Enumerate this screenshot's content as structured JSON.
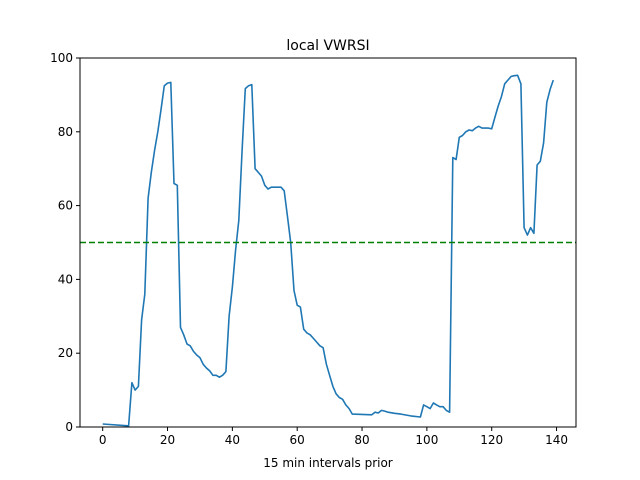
{
  "chart_data": {
    "type": "line",
    "title": "local VWRSI",
    "xlabel": "15 min intervals prior",
    "ylabel": "",
    "xlim": [
      -7,
      146
    ],
    "ylim": [
      0,
      100
    ],
    "xticks": [
      0,
      20,
      40,
      60,
      80,
      100,
      120,
      140
    ],
    "yticks": [
      0,
      20,
      40,
      60,
      80,
      100
    ],
    "grid": false,
    "colors": {
      "series": "#1f77b4",
      "threshold": "#008000"
    },
    "threshold": {
      "y": 50,
      "style": "dashed"
    },
    "series": [
      {
        "name": "local VWRSI",
        "x": [
          0,
          8,
          9,
          10,
          11,
          12,
          13,
          14,
          15,
          16,
          17,
          18,
          19,
          20,
          21,
          22,
          23,
          24,
          25,
          26,
          27,
          28,
          29,
          30,
          31,
          32,
          33,
          34,
          35,
          36,
          37,
          38,
          39,
          40,
          41,
          42,
          43,
          44,
          45,
          46,
          47,
          48,
          49,
          50,
          51,
          52,
          53,
          54,
          55,
          56,
          57,
          58,
          59,
          60,
          61,
          62,
          63,
          64,
          65,
          66,
          67,
          68,
          69,
          70,
          71,
          72,
          73,
          74,
          75,
          76,
          77,
          83,
          84,
          85,
          86,
          87,
          88,
          90,
          92,
          95,
          98,
          99,
          100,
          101,
          102,
          103,
          104,
          105,
          106,
          107,
          108,
          109,
          110,
          111,
          112,
          113,
          114,
          115,
          116,
          117,
          118,
          119,
          120,
          121,
          122,
          123,
          124,
          125,
          126,
          127,
          128,
          129,
          130,
          131,
          132,
          133,
          134,
          135,
          136,
          137,
          138,
          139
        ],
        "y": [
          0.8,
          0.3,
          12,
          10,
          11,
          29,
          36,
          62,
          69,
          75,
          80,
          86,
          92.5,
          93.2,
          93.4,
          66,
          65.5,
          27,
          25,
          22.5,
          22,
          20.5,
          19.5,
          18.8,
          17,
          16,
          15.2,
          14,
          14,
          13.5,
          14,
          15,
          30,
          38,
          48,
          56,
          75,
          91.7,
          92.5,
          92.8,
          70,
          69,
          68,
          65.5,
          64.5,
          65,
          65,
          65,
          65,
          64,
          57,
          50,
          37,
          33,
          32.5,
          26.5,
          25.5,
          25,
          24,
          23,
          22,
          21.5,
          17,
          14,
          11,
          9,
          8,
          7.5,
          6,
          5,
          3.5,
          3.3,
          4,
          3.8,
          4.5,
          4.3,
          4,
          3.7,
          3.5,
          3,
          2.7,
          6,
          5.5,
          5,
          6.5,
          6,
          5.5,
          5.5,
          4.5,
          4,
          73,
          72.5,
          78.5,
          79,
          80,
          80.5,
          80.3,
          81,
          81.5,
          81,
          81,
          81,
          80.8,
          84,
          87,
          89.5,
          93,
          94,
          95,
          95.2,
          95.3,
          93,
          54,
          52,
          54,
          52.5,
          71,
          72,
          77,
          88,
          91.5,
          94
        ]
      }
    ]
  }
}
